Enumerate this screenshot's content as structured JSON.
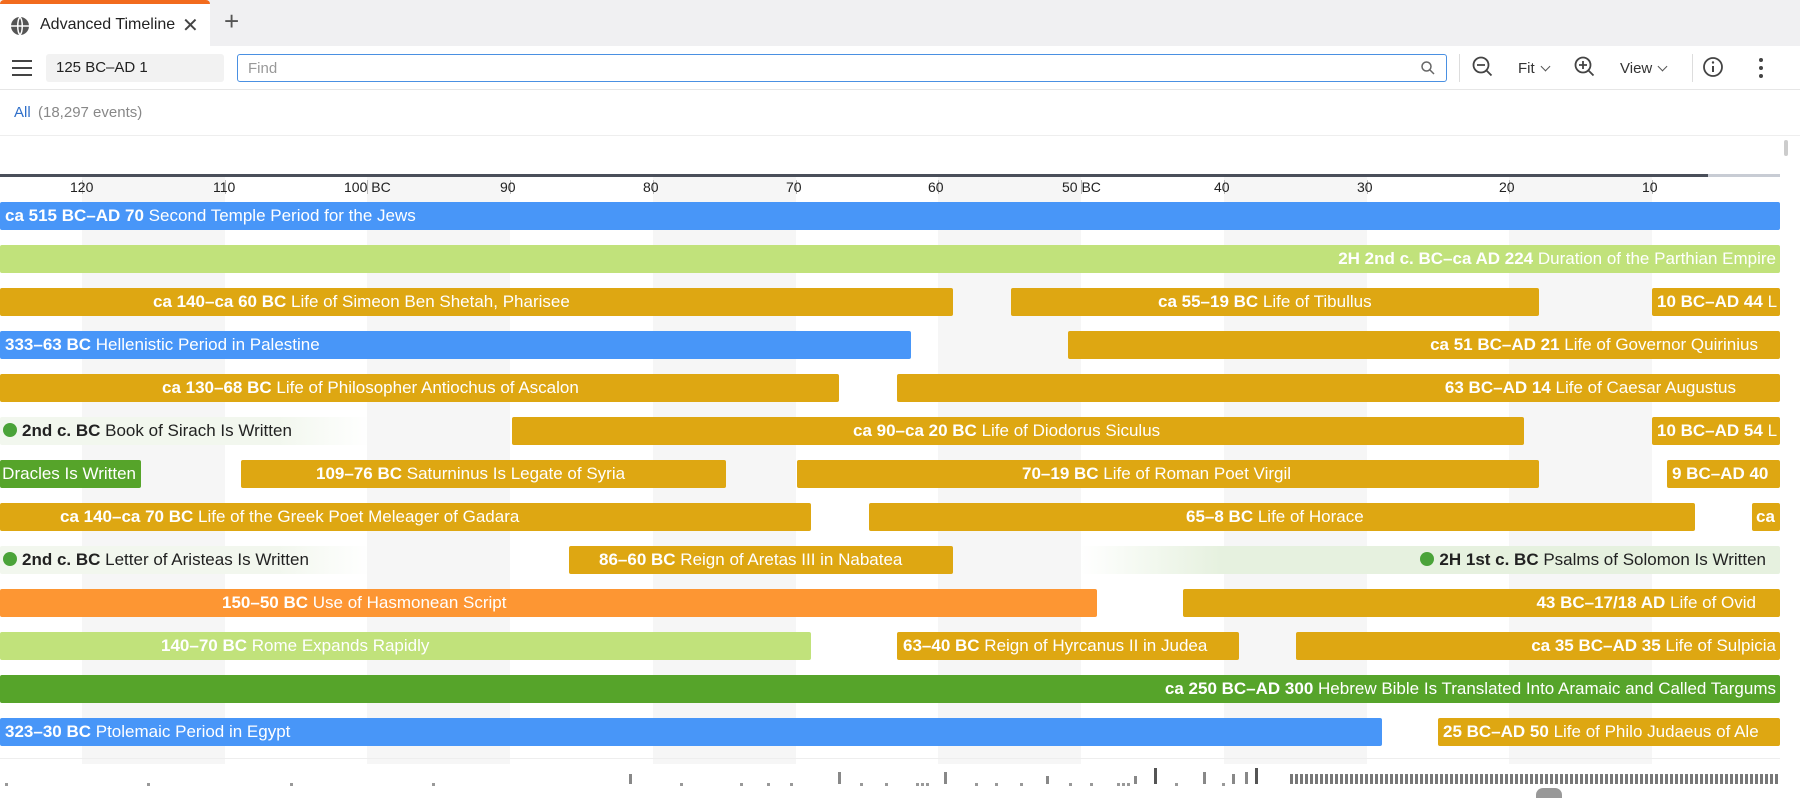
{
  "tab": {
    "title": "Advanced Timeline",
    "close": "✕",
    "new_tab": "+"
  },
  "toolbar": {
    "range": "125 BC–AD 1",
    "find_placeholder": "Find",
    "fit_label": "Fit",
    "view_label": "View"
  },
  "filter": {
    "all_label": "All",
    "count": "(18,297 events)"
  },
  "colors": {
    "blue": "#4896f8",
    "gold": "#dea712",
    "lightgreen": "#c1e27b",
    "green": "#56a42a",
    "orange": "#fd9633",
    "accent": "#f26b1d"
  },
  "axis": {
    "ticks": [
      "120",
      "110",
      "100 BC",
      "90",
      "80",
      "70",
      "60",
      "50 BC",
      "40",
      "30",
      "20",
      "10"
    ]
  },
  "events": [
    {
      "date": "ca 515 BC–AD 70",
      "title": "Second Temple Period for the Jews",
      "color": "blue"
    },
    {
      "date": "2H 2nd c. BC–ca AD 224",
      "title": "Duration of the Parthian Empire",
      "color": "lightgreen"
    },
    {
      "date": "ca 140–ca 60 BC",
      "title": "Life of Simeon Ben Shetah, Pharisee",
      "color": "gold"
    },
    {
      "date": "ca 55–19 BC",
      "title": "Life of Tibullus",
      "color": "gold"
    },
    {
      "date": "10 BC–AD 44",
      "title": "L",
      "color": "gold"
    },
    {
      "date": "333–63 BC",
      "title": "Hellenistic Period in Palestine",
      "color": "blue"
    },
    {
      "date": "ca 51 BC–AD 21",
      "title": "Life of Governor Quirinius",
      "color": "gold"
    },
    {
      "date": "ca 130–68 BC",
      "title": "Life of Philosopher Antiochus of Ascalon",
      "color": "gold"
    },
    {
      "date": "63 BC–AD 14",
      "title": "Life of Caesar Augustus",
      "color": "gold"
    },
    {
      "date": "2nd c. BC",
      "title": "Book of Sirach Is Written",
      "color": "green"
    },
    {
      "date": "ca 90–ca 20 BC",
      "title": "Life of Diodorus Siculus",
      "color": "gold"
    },
    {
      "date": "10 BC–AD 54",
      "title": "L",
      "color": "gold"
    },
    {
      "date": "",
      "title": "Dracles Is Written",
      "color": "green"
    },
    {
      "date": "109–76 BC",
      "title": "Saturninus Is Legate of Syria",
      "color": "gold"
    },
    {
      "date": "70–19 BC",
      "title": "Life of Roman Poet Virgil",
      "color": "gold"
    },
    {
      "date": "9 BC–AD 40",
      "title": "",
      "color": "gold"
    },
    {
      "date": "ca 140–ca 70 BC",
      "title": "Life of the Greek Poet Meleager of Gadara",
      "color": "gold"
    },
    {
      "date": "65–8 BC",
      "title": "Life of Horace",
      "color": "gold"
    },
    {
      "date": "ca",
      "title": "",
      "color": "gold"
    },
    {
      "date": "2nd c. BC",
      "title": "Letter of Aristeas Is Written",
      "color": "green"
    },
    {
      "date": "86–60 BC",
      "title": "Reign of Aretas III in Nabatea",
      "color": "gold"
    },
    {
      "date": "2H 1st c. BC",
      "title": "Psalms of Solomon Is Written",
      "color": "green"
    },
    {
      "date": "150–50 BC",
      "title": "Use of Hasmonean Script",
      "color": "orange"
    },
    {
      "date": "43 BC–17/18 AD",
      "title": "Life of Ovid",
      "color": "gold"
    },
    {
      "date": "140–70 BC",
      "title": "Rome Expands Rapidly",
      "color": "lightgreen"
    },
    {
      "date": "63–40 BC",
      "title": "Reign of Hyrcanus II in Judea",
      "color": "gold"
    },
    {
      "date": "ca 35 BC–AD 35",
      "title": "Life of Sulpicia",
      "color": "gold"
    },
    {
      "date": "ca 250 BC–AD 300",
      "title": "Hebrew Bible Is Translated Into Aramaic and Called Targums",
      "color": "green"
    },
    {
      "date": "323–30 BC",
      "title": "Ptolemaic Period in Egypt",
      "color": "blue"
    },
    {
      "date": "25 BC–AD 50",
      "title": "Life of Philo Judaeus of Ale",
      "color": "gold"
    }
  ]
}
